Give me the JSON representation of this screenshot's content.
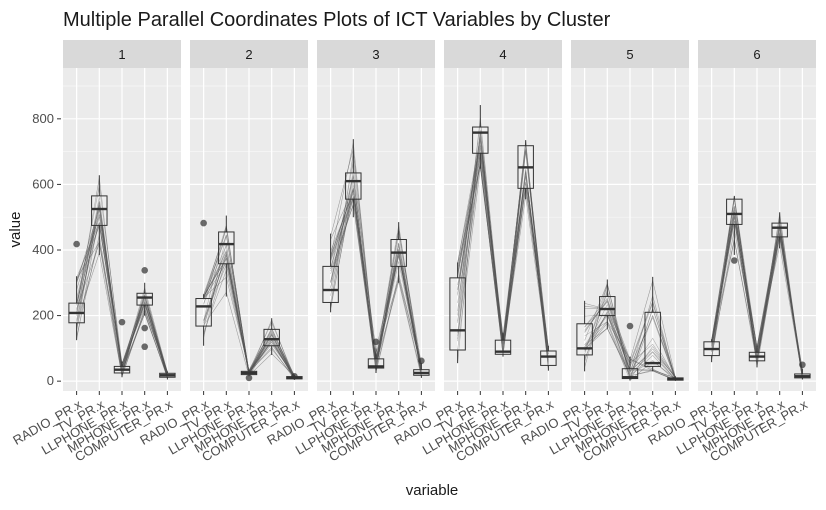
{
  "chart_data": {
    "type": "boxplot",
    "title": "Multiple Parallel Coordinates Plots of ICT Variables by Cluster",
    "xlabel": "variable",
    "ylabel": "value",
    "ylim": [
      -30,
      955
    ],
    "yticks": [
      0,
      200,
      400,
      600,
      800
    ],
    "categories": [
      "RADIO_PR.x",
      "TV_PR.x",
      "LLPHONE_PR.x",
      "MPHONE_PR.x",
      "COMPUTER_PR.x"
    ],
    "grid": true,
    "panels": [
      {
        "label": "1",
        "boxes": [
          {
            "q1": 178,
            "median": 208,
            "q3": 238,
            "whisker_low": 125,
            "whisker_high": 320,
            "outliers": [
              418
            ]
          },
          {
            "q1": 475,
            "median": 525,
            "q3": 565,
            "whisker_low": 385,
            "whisker_high": 628,
            "outliers": []
          },
          {
            "q1": 25,
            "median": 35,
            "q3": 45,
            "whisker_low": 12,
            "whisker_high": 60,
            "outliers": [
              180
            ]
          },
          {
            "q1": 232,
            "median": 255,
            "q3": 268,
            "whisker_low": 200,
            "whisker_high": 300,
            "outliers": [
              338,
              162,
              105
            ]
          },
          {
            "q1": 12,
            "median": 18,
            "q3": 24,
            "whisker_low": 5,
            "whisker_high": 30,
            "outliers": []
          }
        ]
      },
      {
        "label": "2",
        "boxes": [
          {
            "q1": 168,
            "median": 228,
            "q3": 252,
            "whisker_low": 108,
            "whisker_high": 265,
            "outliers": [
              482
            ]
          },
          {
            "q1": 358,
            "median": 418,
            "q3": 455,
            "whisker_low": 258,
            "whisker_high": 505,
            "outliers": []
          },
          {
            "q1": 20,
            "median": 25,
            "q3": 30,
            "whisker_low": 15,
            "whisker_high": 35,
            "outliers": [
              10
            ]
          },
          {
            "q1": 108,
            "median": 128,
            "q3": 158,
            "whisker_low": 80,
            "whisker_high": 192,
            "outliers": []
          },
          {
            "q1": 7,
            "median": 10,
            "q3": 14,
            "whisker_low": 4,
            "whisker_high": 20,
            "outliers": [
              15
            ]
          }
        ]
      },
      {
        "label": "3",
        "boxes": [
          {
            "q1": 240,
            "median": 278,
            "q3": 350,
            "whisker_low": 210,
            "whisker_high": 450,
            "outliers": []
          },
          {
            "q1": 555,
            "median": 610,
            "q3": 635,
            "whisker_low": 500,
            "whisker_high": 738,
            "outliers": []
          },
          {
            "q1": 40,
            "median": 45,
            "q3": 68,
            "whisker_low": 25,
            "whisker_high": 100,
            "outliers": [
              120
            ]
          },
          {
            "q1": 350,
            "median": 392,
            "q3": 432,
            "whisker_low": 300,
            "whisker_high": 485,
            "outliers": []
          },
          {
            "q1": 18,
            "median": 25,
            "q3": 35,
            "whisker_low": 10,
            "whisker_high": 55,
            "outliers": [
              62
            ]
          }
        ]
      },
      {
        "label": "4",
        "boxes": [
          {
            "q1": 95,
            "median": 155,
            "q3": 315,
            "whisker_low": 55,
            "whisker_high": 362,
            "outliers": []
          },
          {
            "q1": 695,
            "median": 758,
            "q3": 775,
            "whisker_low": 648,
            "whisker_high": 842,
            "outliers": []
          },
          {
            "q1": 82,
            "median": 90,
            "q3": 125,
            "whisker_low": 75,
            "whisker_high": 148,
            "outliers": []
          },
          {
            "q1": 588,
            "median": 652,
            "q3": 718,
            "whisker_low": 555,
            "whisker_high": 735,
            "outliers": []
          },
          {
            "q1": 48,
            "median": 75,
            "q3": 92,
            "whisker_low": 32,
            "whisker_high": 108,
            "outliers": []
          }
        ]
      },
      {
        "label": "5",
        "boxes": [
          {
            "q1": 80,
            "median": 100,
            "q3": 175,
            "whisker_low": 30,
            "whisker_high": 245,
            "outliers": []
          },
          {
            "q1": 200,
            "median": 220,
            "q3": 258,
            "whisker_low": 160,
            "whisker_high": 310,
            "outliers": []
          },
          {
            "q1": 8,
            "median": 12,
            "q3": 38,
            "whisker_low": 2,
            "whisker_high": 75,
            "outliers": [
              168
            ]
          },
          {
            "q1": 45,
            "median": 55,
            "q3": 210,
            "whisker_low": 30,
            "whisker_high": 318,
            "outliers": []
          },
          {
            "q1": 3,
            "median": 6,
            "q3": 10,
            "whisker_low": 1,
            "whisker_high": 15,
            "outliers": []
          }
        ]
      },
      {
        "label": "6",
        "boxes": [
          {
            "q1": 78,
            "median": 98,
            "q3": 120,
            "whisker_low": 58,
            "whisker_high": 128,
            "outliers": []
          },
          {
            "q1": 478,
            "median": 510,
            "q3": 555,
            "whisker_low": 385,
            "whisker_high": 565,
            "outliers": [
              368
            ]
          },
          {
            "q1": 62,
            "median": 75,
            "q3": 88,
            "whisker_low": 42,
            "whisker_high": 108,
            "outliers": []
          },
          {
            "q1": 440,
            "median": 468,
            "q3": 482,
            "whisker_low": 405,
            "whisker_high": 515,
            "outliers": []
          },
          {
            "q1": 10,
            "median": 15,
            "q3": 22,
            "whisker_low": 5,
            "whisker_high": 38,
            "outliers": [
              50
            ]
          }
        ]
      }
    ]
  }
}
